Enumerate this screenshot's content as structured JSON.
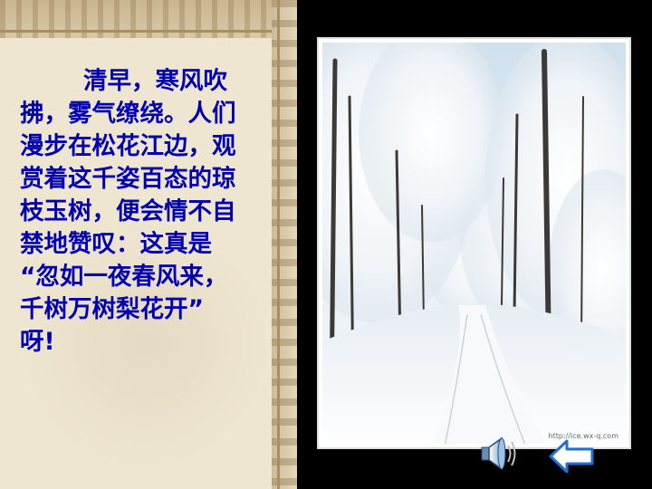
{
  "slide": {
    "poem_lines": [
      "清早，寒风吹",
      "拂，雾气缭绕。人们",
      "漫步在松花江边，观",
      "赏着这千姿百态的琼",
      "枝玉树，便会情不自",
      "禁地赞叹：这真是",
      "“忽如一夜春风来，",
      "千树万树梨花开”",
      "呀!"
    ],
    "photo_watermark": "http://ice.wx-q.com",
    "text_color": "#0000b0"
  },
  "controls": {
    "sound_icon": "speaker-icon",
    "back_icon": "left-arrow-icon"
  }
}
